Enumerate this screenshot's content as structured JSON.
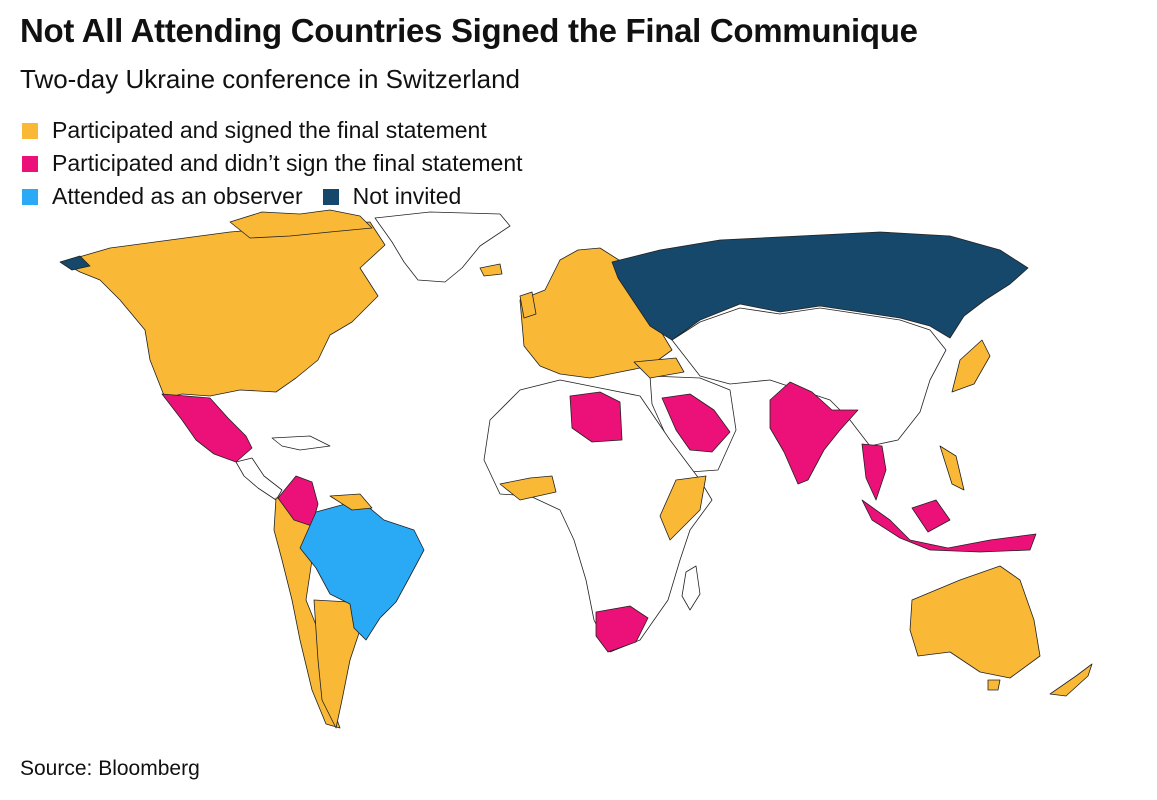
{
  "title": "Not All Attending Countries Signed the Final Communique",
  "subtitle": "Two-day Ukraine conference in Switzerland",
  "legend": [
    {
      "label": "Participated and signed the final statement",
      "color": "#f9b937"
    },
    {
      "label": "Participated and didn’t sign the final statement",
      "color": "#eb1179"
    },
    {
      "label": "Attended as an observer",
      "color": "#2aa9f5"
    },
    {
      "label": "Not invited",
      "color": "#15486b"
    }
  ],
  "source": "Source: Bloomberg"
}
